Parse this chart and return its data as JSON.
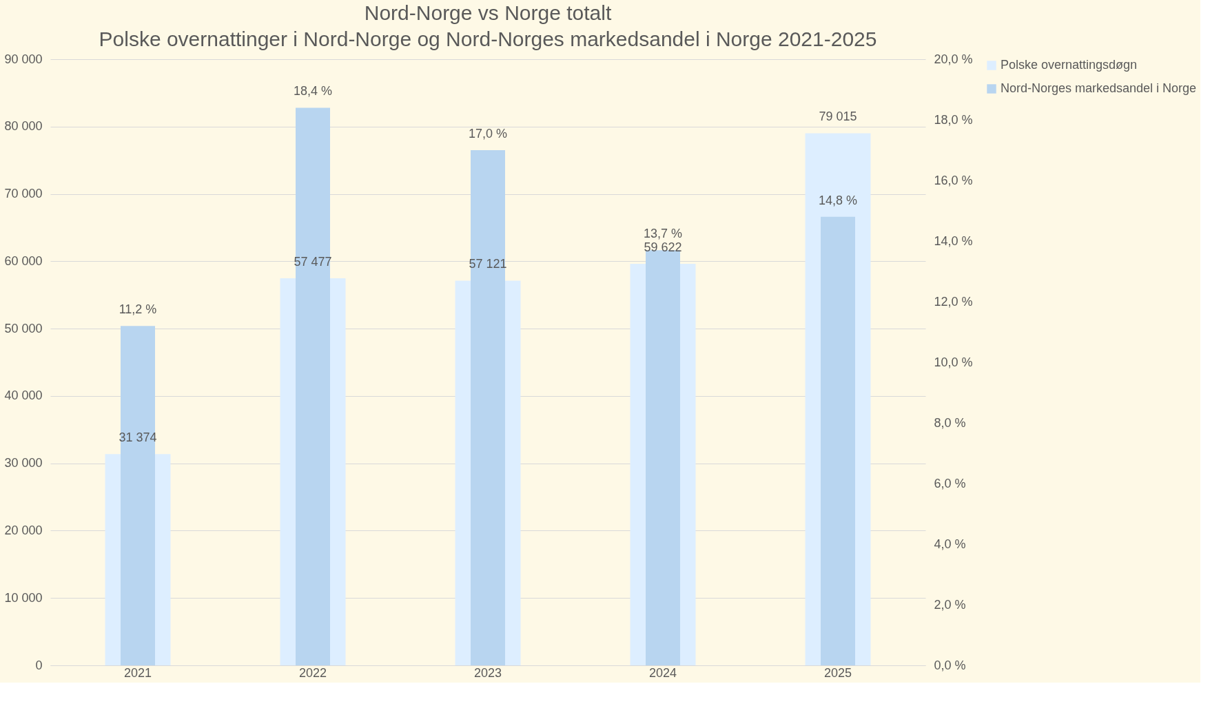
{
  "chart_data": {
    "type": "bar",
    "title": "Nord-Norge vs Norge totalt",
    "subtitle": "Polske overnattinger i Nord-Norge og Nord-Norges markedsandel i Norge 2021-2025",
    "categories": [
      "2021",
      "2022",
      "2023",
      "2024",
      "2025"
    ],
    "series": [
      {
        "name": "Polske overnattingsdøgn",
        "color": "#ddeeff",
        "values": [
          31374,
          57477,
          57121,
          59622,
          79015
        ],
        "value_labels": [
          "31 374",
          "57 477",
          "57 121",
          "59 622",
          "79 015"
        ]
      },
      {
        "name": "Nord-Norges markedsandel i Norge",
        "color": "#b8d5f0",
        "axis": "y2",
        "values": [
          11.2,
          18.4,
          17.0,
          13.7,
          14.8
        ],
        "value_labels": [
          "11,2 %",
          "18,4 %",
          "17,0 %",
          "13,7 %",
          "14,8 %"
        ]
      }
    ],
    "ylim": [
      0,
      90000
    ],
    "yticks": [
      {
        "value": 0,
        "label": "0"
      },
      {
        "value": 10000,
        "label": "10 000"
      },
      {
        "value": 20000,
        "label": "20 000"
      },
      {
        "value": 30000,
        "label": "30 000"
      },
      {
        "value": 40000,
        "label": "40 000"
      },
      {
        "value": 50000,
        "label": "50 000"
      },
      {
        "value": 60000,
        "label": "60 000"
      },
      {
        "value": 70000,
        "label": "70 000"
      },
      {
        "value": 80000,
        "label": "80 000"
      },
      {
        "value": 90000,
        "label": "90 000"
      }
    ],
    "y2lim": [
      0,
      20
    ],
    "y2ticks": [
      {
        "value": 0,
        "label": "0,0 %"
      },
      {
        "value": 2,
        "label": "2,0 %"
      },
      {
        "value": 4,
        "label": "4,0 %"
      },
      {
        "value": 6,
        "label": "6,0 %"
      },
      {
        "value": 8,
        "label": "8,0 %"
      },
      {
        "value": 10,
        "label": "10,0 %"
      },
      {
        "value": 12,
        "label": "12,0 %"
      },
      {
        "value": 14,
        "label": "14,0 %"
      },
      {
        "value": 16,
        "label": "16,0 %"
      },
      {
        "value": 18,
        "label": "18,0 %"
      },
      {
        "value": 20,
        "label": "20,0 %"
      }
    ],
    "grid": "y",
    "legend": "right"
  }
}
